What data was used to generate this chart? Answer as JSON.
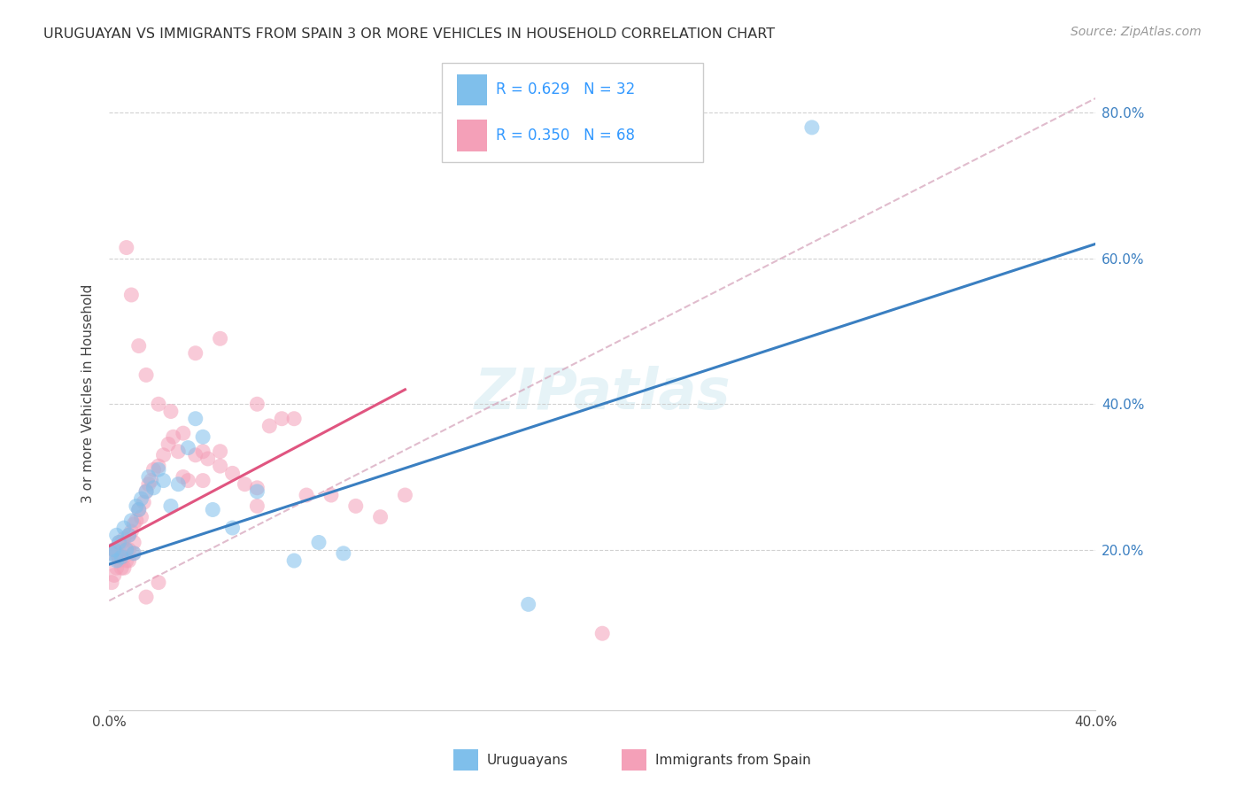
{
  "title": "URUGUAYAN VS IMMIGRANTS FROM SPAIN 3 OR MORE VEHICLES IN HOUSEHOLD CORRELATION CHART",
  "source": "Source: ZipAtlas.com",
  "ylabel": "3 or more Vehicles in Household",
  "xlim": [
    0.0,
    0.4
  ],
  "ylim": [
    -0.02,
    0.85
  ],
  "xticks": [
    0.0,
    0.05,
    0.1,
    0.15,
    0.2,
    0.25,
    0.3,
    0.35,
    0.4
  ],
  "xticklabels": [
    "0.0%",
    "",
    "",
    "",
    "",
    "",
    "",
    "",
    "40.0%"
  ],
  "yticks_right": [
    0.2,
    0.4,
    0.6,
    0.8
  ],
  "ytick_right_labels": [
    "20.0%",
    "40.0%",
    "60.0%",
    "80.0%"
  ],
  "legend_label1": "R = 0.629   N = 32",
  "legend_label2": "R = 0.350   N = 68",
  "legend_bottom_label1": "Uruguayans",
  "legend_bottom_label2": "Immigrants from Spain",
  "blue_color": "#7fbfeb",
  "pink_color": "#f4a0b8",
  "blue_line_color": "#3a7fc1",
  "pink_line_color": "#e05580",
  "watermark": "ZIPatlas",
  "blue_line_x0": 0.0,
  "blue_line_y0": 0.18,
  "blue_line_x1": 0.4,
  "blue_line_y1": 0.62,
  "pink_line_x0": 0.0,
  "pink_line_y0": 0.205,
  "pink_line_x1": 0.12,
  "pink_line_y1": 0.42,
  "dash_line_x0": 0.0,
  "dash_line_y0": 0.13,
  "dash_line_x1": 0.4,
  "dash_line_y1": 0.82,
  "uruguayan_x": [
    0.001,
    0.002,
    0.003,
    0.003,
    0.004,
    0.005,
    0.006,
    0.007,
    0.008,
    0.009,
    0.01,
    0.011,
    0.012,
    0.013,
    0.015,
    0.016,
    0.018,
    0.02,
    0.022,
    0.025,
    0.028,
    0.032,
    0.038,
    0.042,
    0.05,
    0.06,
    0.075,
    0.085,
    0.095,
    0.17,
    0.285,
    0.035
  ],
  "uruguayan_y": [
    0.195,
    0.2,
    0.22,
    0.185,
    0.21,
    0.19,
    0.23,
    0.2,
    0.22,
    0.24,
    0.195,
    0.26,
    0.255,
    0.27,
    0.28,
    0.3,
    0.285,
    0.31,
    0.295,
    0.26,
    0.29,
    0.34,
    0.355,
    0.255,
    0.23,
    0.28,
    0.185,
    0.21,
    0.195,
    0.125,
    0.78,
    0.38
  ],
  "spain_x": [
    0.001,
    0.001,
    0.002,
    0.002,
    0.003,
    0.003,
    0.004,
    0.004,
    0.005,
    0.005,
    0.006,
    0.006,
    0.007,
    0.007,
    0.008,
    0.008,
    0.009,
    0.01,
    0.01,
    0.011,
    0.012,
    0.013,
    0.014,
    0.015,
    0.016,
    0.017,
    0.018,
    0.02,
    0.022,
    0.024,
    0.026,
    0.028,
    0.03,
    0.032,
    0.035,
    0.038,
    0.04,
    0.045,
    0.05,
    0.055,
    0.06,
    0.065,
    0.07,
    0.075,
    0.08,
    0.09,
    0.1,
    0.11,
    0.12,
    0.035,
    0.045,
    0.06,
    0.007,
    0.009,
    0.012,
    0.015,
    0.02,
    0.025,
    0.03,
    0.038,
    0.045,
    0.06,
    0.2,
    0.015,
    0.02,
    0.01,
    0.008,
    0.006
  ],
  "spain_y": [
    0.195,
    0.155,
    0.2,
    0.165,
    0.195,
    0.175,
    0.21,
    0.185,
    0.21,
    0.175,
    0.19,
    0.215,
    0.2,
    0.185,
    0.22,
    0.2,
    0.225,
    0.235,
    0.21,
    0.24,
    0.255,
    0.245,
    0.265,
    0.28,
    0.29,
    0.295,
    0.31,
    0.315,
    0.33,
    0.345,
    0.355,
    0.335,
    0.3,
    0.295,
    0.33,
    0.295,
    0.325,
    0.335,
    0.305,
    0.29,
    0.26,
    0.37,
    0.38,
    0.38,
    0.275,
    0.275,
    0.26,
    0.245,
    0.275,
    0.47,
    0.49,
    0.4,
    0.615,
    0.55,
    0.48,
    0.44,
    0.4,
    0.39,
    0.36,
    0.335,
    0.315,
    0.285,
    0.085,
    0.135,
    0.155,
    0.195,
    0.185,
    0.175
  ]
}
